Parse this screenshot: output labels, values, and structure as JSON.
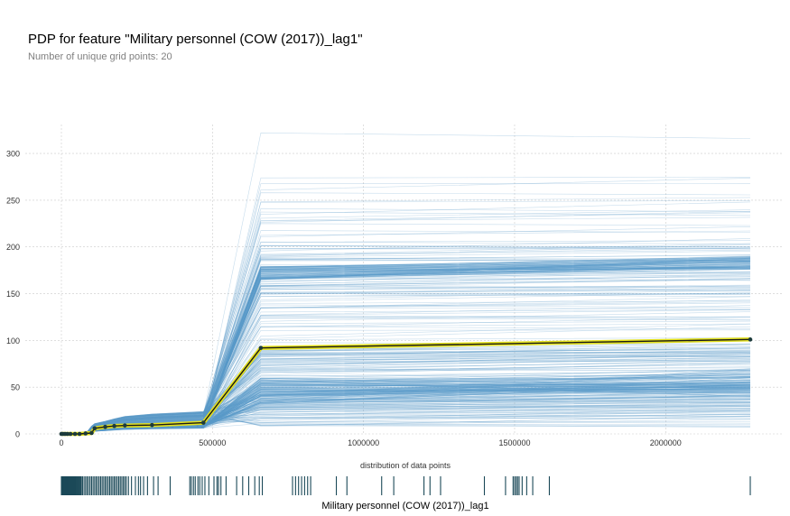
{
  "header": {
    "title": "PDP for feature \"Military personnel (COW (2017))_lag1\"",
    "subtitle": "Number of unique grid points: 20"
  },
  "chart_data": {
    "type": "line",
    "title": "PDP for feature \"Military personnel (COW (2017))_lag1\"",
    "subtitle": "Number of unique grid points: 20",
    "xlabel": "Military personnel (COW (2017))_lag1",
    "ylabel": "",
    "xlim": [
      -40000,
      2300000
    ],
    "ylim": [
      0,
      330
    ],
    "x_ticks": [
      0,
      500000,
      1000000,
      1500000,
      2000000
    ],
    "y_ticks": [
      0,
      50,
      100,
      150,
      200,
      250,
      300
    ],
    "grid": true,
    "rug_label": "distribution of data points",
    "colors": {
      "ice_lines": "#5b9bc9",
      "pdp_line": "#1a1a1a",
      "pdp_highlight": "#e3e01c",
      "pdp_points": "#1d3b3b",
      "rug": "#1b4958",
      "grid": "#cccccc"
    },
    "series": [
      {
        "x": [
          0,
          5000,
          12000,
          20000,
          30000,
          45000,
          60000,
          80000,
          100000,
          110000,
          145000,
          175000,
          210000,
          300000,
          470000,
          660000,
          2280000
        ],
        "y": [
          0,
          0,
          0,
          0,
          0,
          0,
          0,
          0.5,
          1,
          6,
          7.5,
          8.5,
          9,
          9.5,
          12,
          92,
          101
        ]
      }
    ],
    "rug_values": [
      0,
      3000,
      6000,
      9000,
      12000,
      15000,
      18000,
      21000,
      24000,
      27000,
      30000,
      33000,
      36000,
      39000,
      42000,
      45000,
      48000,
      51000,
      54000,
      57000,
      60000,
      63000,
      66000,
      70000,
      75000,
      80000,
      85000,
      90000,
      95000,
      100000,
      105000,
      110000,
      115000,
      120000,
      125000,
      130000,
      135000,
      140000,
      145000,
      150000,
      155000,
      160000,
      165000,
      170000,
      175000,
      180000,
      185000,
      190000,
      195000,
      200000,
      205000,
      210000,
      215000,
      222000,
      232000,
      245000,
      255000,
      262000,
      272000,
      285000,
      305000,
      320000,
      360000,
      425000,
      430000,
      437000,
      443000,
      452000,
      458000,
      466000,
      475000,
      488000,
      505000,
      515000,
      520000,
      528000,
      545000,
      580000,
      600000,
      620000,
      640000,
      655000,
      665000,
      765000,
      775000,
      785000,
      795000,
      805000,
      815000,
      825000,
      910000,
      945000,
      1060000,
      1100000,
      1200000,
      1220000,
      1255000,
      1400000,
      1470000,
      1495000,
      1500000,
      1505000,
      1510000,
      1515000,
      1525000,
      1540000,
      1560000,
      1615000,
      2280000
    ]
  }
}
